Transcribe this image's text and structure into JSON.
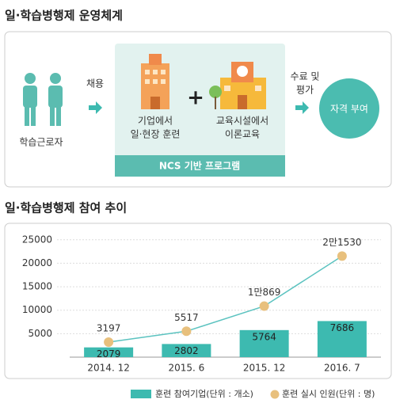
{
  "diagram": {
    "title": "일·학습병행제 운영체계",
    "worker": "학습근로자",
    "hire": "채용",
    "company": [
      "기업에서",
      "일·현장 훈련"
    ],
    "plus": "+",
    "school": [
      "교육시설에서",
      "이론교육"
    ],
    "program": "NCS 기반 프로그램",
    "evaluation": [
      "수료 및",
      "평가"
    ],
    "qualification": "자격 부여"
  },
  "chart_data": {
    "type": "bar",
    "title": "일·학습병행제 참여 추이",
    "categories": [
      "2014. 12",
      "2015. 6",
      "2015. 12",
      "2016. 7"
    ],
    "series": [
      {
        "name": "훈련 참여기업(단위 : 개소)",
        "type": "bar",
        "color": "#3dbab0",
        "values": [
          2079,
          2802,
          5764,
          7686
        ]
      },
      {
        "name": "훈련 실시 인원(단위 : 명)",
        "type": "line",
        "color": "#e8c07d",
        "line_color": "#5cc3c0",
        "values": [
          3197,
          5517,
          10869,
          21530
        ],
        "value_labels": [
          "3197",
          "5517",
          "1만869",
          "2만1530"
        ]
      }
    ],
    "ylim": [
      0,
      28000
    ],
    "yticks": [
      5000,
      10000,
      15000,
      20000,
      25000
    ],
    "grid": true
  }
}
